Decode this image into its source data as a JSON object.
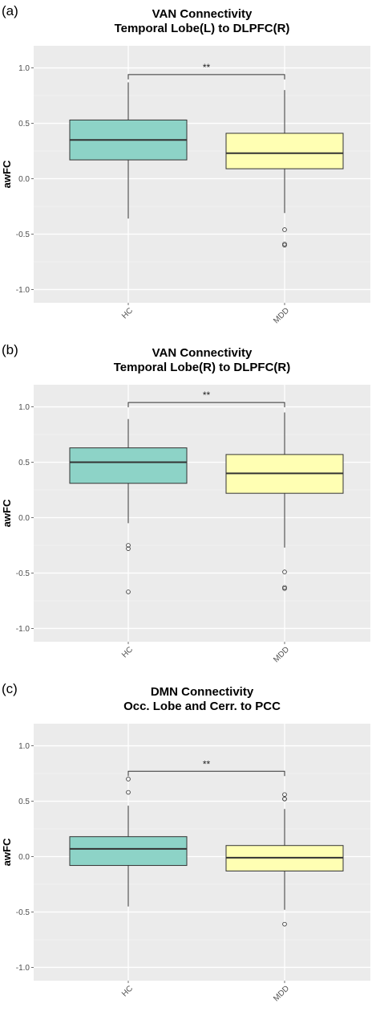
{
  "chart_data": [
    {
      "type": "box",
      "panel_label": "(a)",
      "title": "VAN Connectivity",
      "subtitle": "Temporal Lobe(L) to DLPFC(R)",
      "ylabel": "awFC",
      "xlabel": "",
      "ylim": [
        -1.12,
        1.2
      ],
      "yticks": [
        "1.0",
        "0.5",
        "0.0",
        "-0.5",
        "-1.0"
      ],
      "ytick_values": [
        1.0,
        0.5,
        0.0,
        -0.5,
        -1.0
      ],
      "grid": true,
      "categories": [
        "HC",
        "MDD"
      ],
      "colors": [
        "#8dd3c7",
        "#ffffb3"
      ],
      "boxes": [
        {
          "name": "HC",
          "whisker_low": -0.36,
          "q1": 0.17,
          "median": 0.35,
          "q3": 0.53,
          "whisker_high": 0.87,
          "outliers": []
        },
        {
          "name": "MDD",
          "whisker_low": -0.31,
          "q1": 0.09,
          "median": 0.23,
          "q3": 0.41,
          "whisker_high": 0.8,
          "outliers": [
            -0.46,
            -0.59,
            -0.6
          ]
        }
      ],
      "significance": {
        "label": "**",
        "y": 0.94
      }
    },
    {
      "type": "box",
      "panel_label": "(b)",
      "title": "VAN Connectivity",
      "subtitle": "Temporal Lobe(R) to DLPFC(R)",
      "ylabel": "awFC",
      "xlabel": "",
      "ylim": [
        -1.12,
        1.2
      ],
      "yticks": [
        "1.0",
        "0.5",
        "0.0",
        "-0.5",
        "-1.0"
      ],
      "ytick_values": [
        1.0,
        0.5,
        0.0,
        -0.5,
        -1.0
      ],
      "grid": true,
      "categories": [
        "HC",
        "MDD"
      ],
      "colors": [
        "#8dd3c7",
        "#ffffb3"
      ],
      "boxes": [
        {
          "name": "HC",
          "whisker_low": -0.05,
          "q1": 0.31,
          "median": 0.5,
          "q3": 0.63,
          "whisker_high": 0.89,
          "outliers": [
            -0.25,
            -0.28,
            -0.67
          ]
        },
        {
          "name": "MDD",
          "whisker_low": -0.27,
          "q1": 0.22,
          "median": 0.4,
          "q3": 0.57,
          "whisker_high": 0.95,
          "outliers": [
            -0.49,
            -0.64,
            -0.63
          ]
        }
      ],
      "significance": {
        "label": "**",
        "y": 1.04
      }
    },
    {
      "type": "box",
      "panel_label": "(c)",
      "title": "DMN Connectivity",
      "subtitle": "Occ. Lobe and Cerr. to PCC",
      "ylabel": "awFC",
      "xlabel": "",
      "ylim": [
        -1.12,
        1.2
      ],
      "yticks": [
        "1.0",
        "0.5",
        "0.0",
        "-0.5",
        "-1.0"
      ],
      "ytick_values": [
        1.0,
        0.5,
        0.0,
        -0.5,
        -1.0
      ],
      "grid": true,
      "categories": [
        "HC",
        "MDD"
      ],
      "colors": [
        "#8dd3c7",
        "#ffffb3"
      ],
      "boxes": [
        {
          "name": "HC",
          "whisker_low": -0.45,
          "q1": -0.08,
          "median": 0.07,
          "q3": 0.18,
          "whisker_high": 0.46,
          "outliers": [
            0.58,
            0.7
          ]
        },
        {
          "name": "MDD",
          "whisker_low": -0.48,
          "q1": -0.13,
          "median": -0.01,
          "q3": 0.1,
          "whisker_high": 0.43,
          "outliers": [
            0.52,
            0.52,
            0.56,
            -0.61
          ]
        }
      ],
      "significance": {
        "label": "**",
        "y": 0.77
      }
    }
  ]
}
